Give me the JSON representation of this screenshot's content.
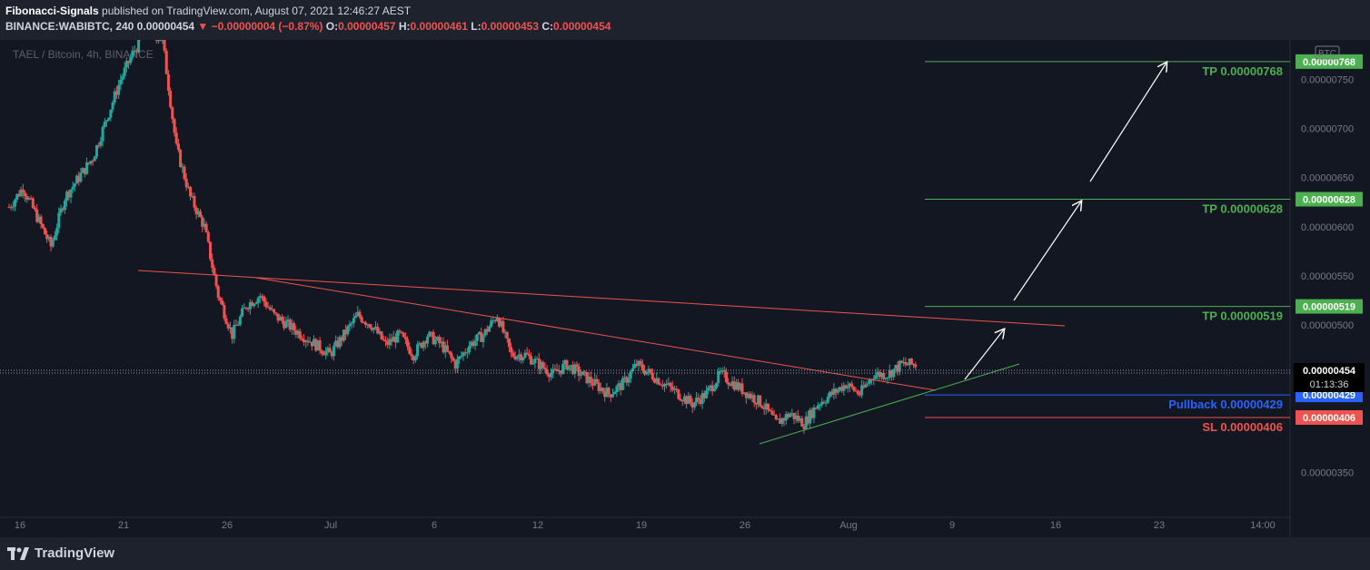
{
  "header": {
    "author": "Fibonacci-Signals",
    "published": " published on TradingView.com, August 07, 2021 12:46:27 AEST",
    "symbol_line": "BINANCE:WABIBTC, 240 0.00000454",
    "change": "−0.00000004 (−0.87%)",
    "ohlc_open_label": "O:",
    "ohlc_open": "0.00000457",
    "ohlc_high_label": "H:",
    "ohlc_high": "0.00000461",
    "ohlc_low_label": "L:",
    "ohlc_low": "0.00000453",
    "ohlc_close_label": "C:",
    "ohlc_close": "0.00000454"
  },
  "chart_data": {
    "type": "candlestick",
    "watermark": "TAEL / Bitcoin, 4h, BINANCE",
    "currency_badge": "BTC",
    "colors": {
      "up": "#26a69a",
      "down": "#ef5350",
      "background": "#131722",
      "resistance": "#ef5350",
      "support": "#4caf50",
      "tp": "#4caf50",
      "pullback": "#2962ff",
      "sl": "#ef5350"
    },
    "ylim": [
      3.1e-06,
      7.9e-06
    ],
    "y_ticks": [
      {
        "v": 7.5e-06,
        "label": "0.00000750"
      },
      {
        "v": 7e-06,
        "label": "0.00000700"
      },
      {
        "v": 6.5e-06,
        "label": "0.00000650"
      },
      {
        "v": 6e-06,
        "label": "0.00000600"
      },
      {
        "v": 5.5e-06,
        "label": "0.00000550"
      },
      {
        "v": 5e-06,
        "label": "0.00000500"
      },
      {
        "v": 3.5e-06,
        "label": "0.00000350"
      }
    ],
    "x_ticks": [
      "16",
      "21",
      "26",
      "Jul",
      "6",
      "12",
      "19",
      "26",
      "Aug",
      "9",
      "16",
      "23",
      "14:00"
    ],
    "price_path": [
      [
        6.2e-06,
        6.4e-06,
        6.1e-06,
        5.8e-06,
        6.3e-06,
        6.5e-06,
        6.7e-06,
        7.1e-06,
        7.5e-06,
        7.8e-06,
        8e-06,
        7.9e-06,
        6.8e-06,
        6.3e-06,
        6e-06,
        5.3e-06,
        4.9e-06,
        5.2e-06,
        5.3e-06,
        5.1e-06,
        5e-06,
        4.9e-06,
        4.8e-06,
        4.7e-06,
        4.9e-06,
        5.1e-06,
        5e-06,
        4.8e-06,
        4.9e-06,
        4.7e-06,
        4.9e-06,
        4.8e-06,
        4.6e-06,
        4.8e-06,
        4.9e-06,
        5.1e-06,
        4.7e-06,
        4.7e-06,
        4.6e-06,
        4.5e-06,
        4.6e-06,
        4.5e-06,
        4.4e-06,
        4.3e-06,
        4.4e-06,
        4.6e-06,
        4.5e-06,
        4.4e-06,
        4.3e-06,
        4.2e-06,
        4.3e-06,
        4.5e-06,
        4.4e-06,
        4.3e-06,
        4.2e-06,
        4e-06,
        4.1e-06,
        4e-06,
        4.2e-06,
        4.3e-06,
        4.4e-06,
        4.3e-06,
        4.5e-06,
        4.5e-06,
        4.6e-06,
        4.6e-06
      ]
    ],
    "levels": [
      {
        "label": "TP 0.00000768",
        "value": 7.68e-06,
        "badge": "0.00000768",
        "kind": "tp"
      },
      {
        "label": "TP 0.00000628",
        "value": 6.28e-06,
        "badge": "0.00000628",
        "kind": "tp"
      },
      {
        "label": "TP 0.00000519",
        "value": 5.19e-06,
        "badge": "0.00000519",
        "kind": "tp"
      },
      {
        "label": "Pullback 0.00000429",
        "value": 4.29e-06,
        "badge": "0.00000429",
        "kind": "pullback"
      },
      {
        "label": "SL 0.00000406",
        "value": 4.06e-06,
        "badge": "0.00000406",
        "kind": "sl"
      }
    ],
    "current_price": {
      "value": 4.54e-06,
      "label": "0.00000454",
      "countdown": "01:13:36"
    }
  },
  "footer": {
    "brand": "TradingView"
  }
}
